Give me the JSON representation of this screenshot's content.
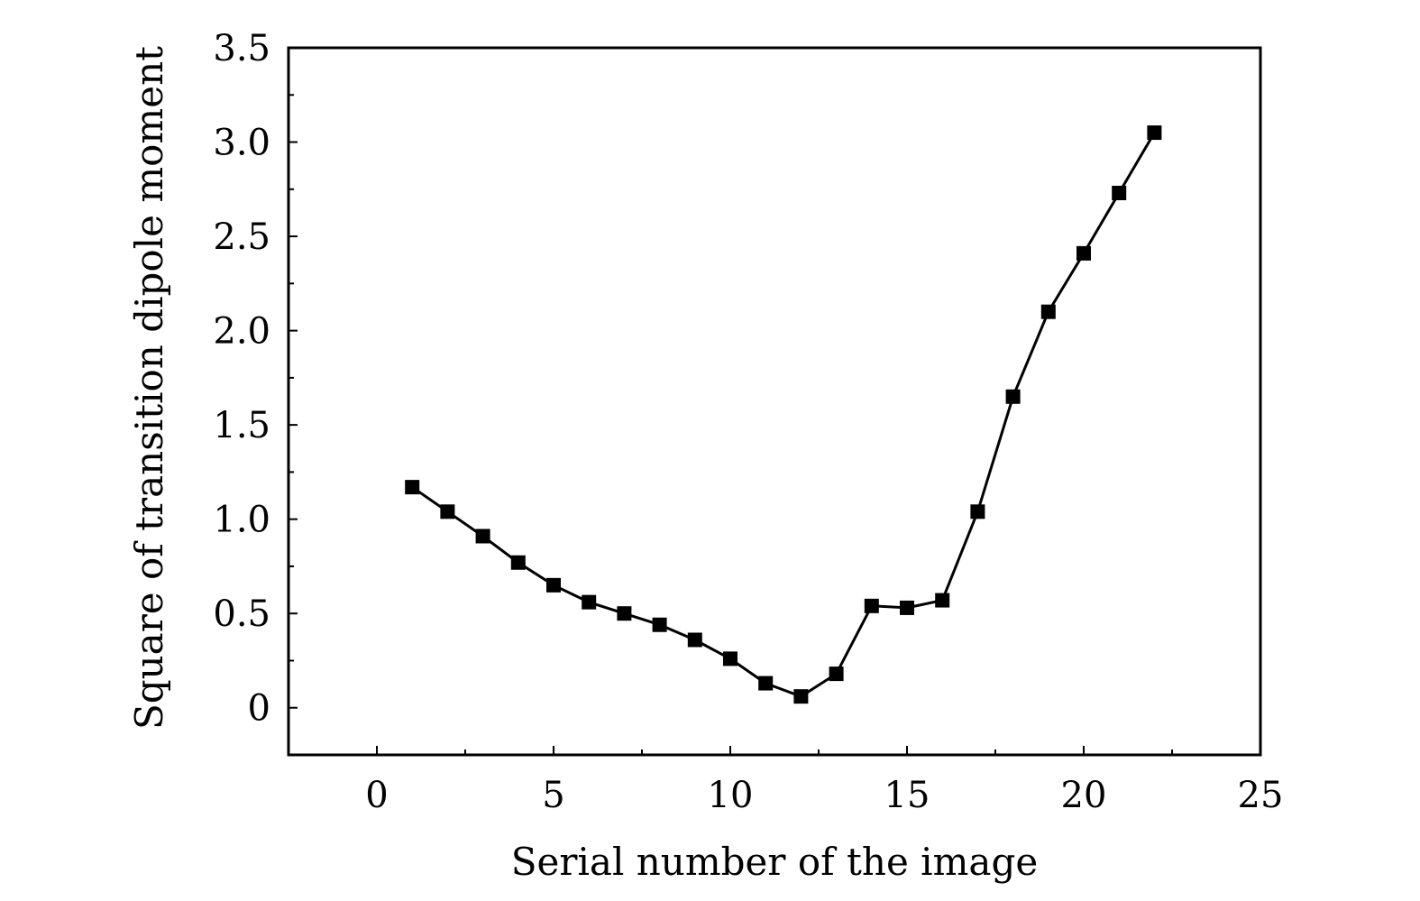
{
  "chart_data": {
    "type": "line",
    "title": "",
    "xlabel": "Serial number of the image",
    "ylabel": "Square of  transition dipole moment",
    "xlim": [
      -2.5,
      25
    ],
    "ylim": [
      -0.25,
      3.5
    ],
    "xticks": [
      0,
      5,
      10,
      15,
      20,
      25
    ],
    "xtick_labels": [
      "0",
      "5",
      "10",
      "15",
      "20",
      "25"
    ],
    "yticks": [
      0,
      0.5,
      1.0,
      1.5,
      2.0,
      2.5,
      3.0,
      3.5
    ],
    "ytick_labels": [
      "0",
      "0.5",
      "1.0",
      "1.5",
      "2.0",
      "2.5",
      "3.0",
      "3.5"
    ],
    "grid": false,
    "marker": "square",
    "color": "#000000",
    "series": [
      {
        "x": [
          1,
          2,
          3,
          4,
          5,
          6,
          7,
          8,
          9,
          10,
          11,
          12,
          13,
          14,
          15,
          16,
          17,
          18,
          19,
          20,
          21,
          22
        ],
        "values": [
          1.17,
          1.04,
          0.91,
          0.77,
          0.65,
          0.56,
          0.5,
          0.44,
          0.36,
          0.26,
          0.13,
          0.06,
          0.18,
          0.54,
          0.53,
          0.57,
          1.04,
          1.65,
          2.1,
          2.41,
          2.73,
          3.05
        ]
      }
    ]
  }
}
